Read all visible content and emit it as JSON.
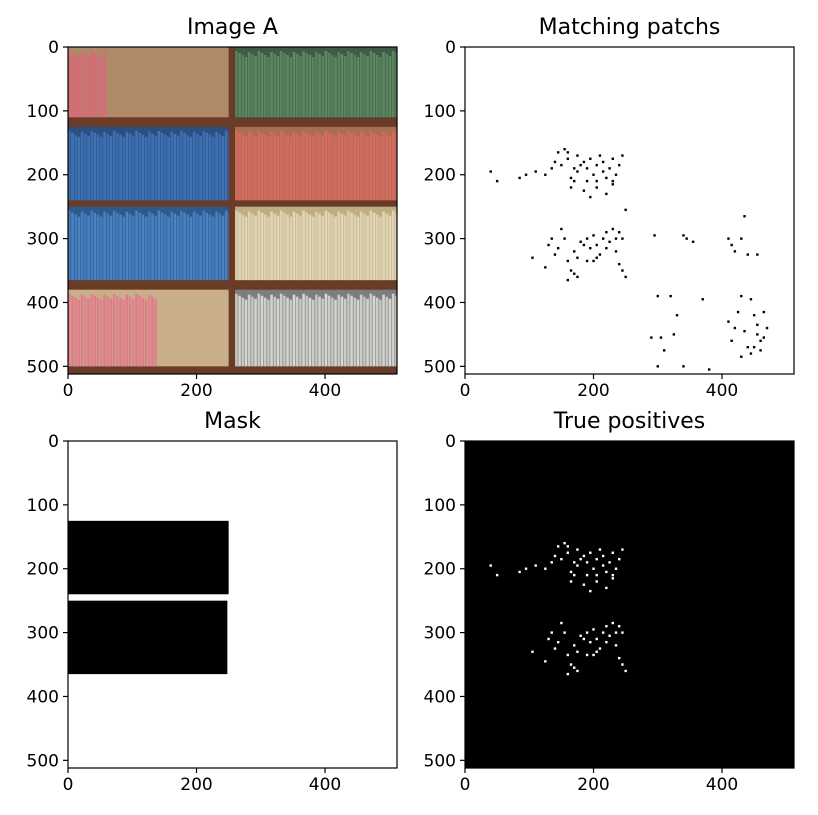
{
  "chart_data": [
    {
      "type": "image",
      "title": "Image A",
      "xlim": [
        0,
        512
      ],
      "ylim": [
        512,
        0
      ],
      "xticks": [
        0,
        200,
        400
      ],
      "yticks": [
        0,
        100,
        200,
        300,
        400,
        500
      ],
      "image_description": "bookshelf photo",
      "bookcase_color": "#6a3b26",
      "regions": [
        {
          "x0": 0,
          "x1": 250,
          "y0": 0,
          "y1": 110,
          "books": [
            0,
            60
          ],
          "book_color": "#d86878",
          "back_color": "#b08a68"
        },
        {
          "x0": 260,
          "x1": 512,
          "y0": 0,
          "y1": 110,
          "books": [
            0,
            250
          ],
          "book_color": "#5e8a62",
          "back_color": "#3f5a48"
        },
        {
          "x0": 0,
          "x1": 250,
          "y0": 125,
          "y1": 240,
          "books": [
            0,
            250
          ],
          "book_color": "#3f74b8",
          "back_color": "#2d4f80"
        },
        {
          "x0": 260,
          "x1": 512,
          "y0": 125,
          "y1": 240,
          "books": [
            0,
            250
          ],
          "book_color": "#d96a62",
          "back_color": "#a86e52"
        },
        {
          "x0": 0,
          "x1": 250,
          "y0": 250,
          "y1": 365,
          "books": [
            0,
            250
          ],
          "book_color": "#4a84c6",
          "back_color": "#2d5a8a"
        },
        {
          "x0": 260,
          "x1": 512,
          "y0": 250,
          "y1": 365,
          "books": [
            0,
            250
          ],
          "book_color": "#e2d8b8",
          "back_color": "#bfae84"
        },
        {
          "x0": 0,
          "x1": 250,
          "y0": 380,
          "y1": 500,
          "books": [
            0,
            140
          ],
          "book_color": "#e17a8c",
          "back_color": "#c9ae8a"
        },
        {
          "x0": 260,
          "x1": 512,
          "y0": 380,
          "y1": 500,
          "books": [
            0,
            250
          ],
          "book_color": "#d8d8d0",
          "back_color": "#7d7d80"
        }
      ]
    },
    {
      "type": "scatter",
      "title": "Matching patchs",
      "xlim": [
        0,
        512
      ],
      "ylim": [
        512,
        0
      ],
      "xticks": [
        0,
        200,
        400
      ],
      "yticks": [
        0,
        100,
        200,
        300,
        400,
        500
      ],
      "background": "#ffffff",
      "point_color": "#000000",
      "points": [
        [
          40,
          195
        ],
        [
          50,
          210
        ],
        [
          85,
          205
        ],
        [
          95,
          200
        ],
        [
          110,
          195
        ],
        [
          125,
          200
        ],
        [
          135,
          190
        ],
        [
          140,
          180
        ],
        [
          145,
          165
        ],
        [
          150,
          185
        ],
        [
          155,
          160
        ],
        [
          160,
          175
        ],
        [
          165,
          205
        ],
        [
          170,
          210
        ],
        [
          170,
          190
        ],
        [
          175,
          195
        ],
        [
          180,
          185
        ],
        [
          185,
          180
        ],
        [
          190,
          190
        ],
        [
          190,
          210
        ],
        [
          195,
          175
        ],
        [
          200,
          200
        ],
        [
          205,
          185
        ],
        [
          205,
          210
        ],
        [
          210,
          170
        ],
        [
          215,
          180
        ],
        [
          215,
          195
        ],
        [
          220,
          205
        ],
        [
          225,
          190
        ],
        [
          230,
          175
        ],
        [
          230,
          210
        ],
        [
          235,
          200
        ],
        [
          240,
          185
        ],
        [
          245,
          170
        ],
        [
          185,
          225
        ],
        [
          195,
          235
        ],
        [
          205,
          220
        ],
        [
          220,
          230
        ],
        [
          230,
          215
        ],
        [
          250,
          255
        ],
        [
          160,
          165
        ],
        [
          175,
          170
        ],
        [
          165,
          220
        ],
        [
          125,
          345
        ],
        [
          130,
          310
        ],
        [
          135,
          300
        ],
        [
          140,
          325
        ],
        [
          145,
          315
        ],
        [
          150,
          285
        ],
        [
          155,
          300
        ],
        [
          160,
          335
        ],
        [
          165,
          350
        ],
        [
          170,
          320
        ],
        [
          175,
          330
        ],
        [
          175,
          360
        ],
        [
          180,
          305
        ],
        [
          185,
          310
        ],
        [
          190,
          300
        ],
        [
          190,
          335
        ],
        [
          195,
          315
        ],
        [
          200,
          295
        ],
        [
          205,
          310
        ],
        [
          205,
          330
        ],
        [
          210,
          325
        ],
        [
          215,
          300
        ],
        [
          220,
          315
        ],
        [
          220,
          290
        ],
        [
          225,
          305
        ],
        [
          230,
          285
        ],
        [
          235,
          300
        ],
        [
          235,
          320
        ],
        [
          240,
          290
        ],
        [
          240,
          340
        ],
        [
          245,
          300
        ],
        [
          245,
          350
        ],
        [
          160,
          365
        ],
        [
          170,
          355
        ],
        [
          200,
          335
        ],
        [
          250,
          360
        ],
        [
          105,
          330
        ],
        [
          295,
          295
        ],
        [
          340,
          295
        ],
        [
          345,
          300
        ],
        [
          355,
          305
        ],
        [
          410,
          300
        ],
        [
          415,
          310
        ],
        [
          420,
          320
        ],
        [
          430,
          300
        ],
        [
          440,
          325
        ],
        [
          435,
          265
        ],
        [
          455,
          325
        ],
        [
          430,
          390
        ],
        [
          445,
          395
        ],
        [
          410,
          430
        ],
        [
          420,
          440
        ],
        [
          425,
          415
        ],
        [
          435,
          445
        ],
        [
          450,
          420
        ],
        [
          455,
          450
        ],
        [
          460,
          460
        ],
        [
          465,
          455
        ],
        [
          470,
          440
        ],
        [
          450,
          470
        ],
        [
          460,
          475
        ],
        [
          455,
          435
        ],
        [
          465,
          415
        ],
        [
          430,
          485
        ],
        [
          415,
          460
        ],
        [
          440,
          470
        ],
        [
          445,
          480
        ],
        [
          300,
          390
        ],
        [
          320,
          390
        ],
        [
          370,
          395
        ],
        [
          330,
          420
        ],
        [
          325,
          450
        ],
        [
          305,
          455
        ],
        [
          290,
          455
        ],
        [
          310,
          475
        ],
        [
          300,
          500
        ],
        [
          340,
          500
        ],
        [
          380,
          505
        ]
      ]
    },
    {
      "type": "heatmap",
      "title": "Mask",
      "xlim": [
        0,
        512
      ],
      "ylim": [
        512,
        0
      ],
      "xticks": [
        0,
        200,
        400
      ],
      "yticks": [
        0,
        100,
        200,
        300,
        400,
        500
      ],
      "background": "#ffffff",
      "fill_color": "#000000",
      "rectangles": [
        {
          "x0": 0,
          "x1": 250,
          "y0": 125,
          "y1": 240
        },
        {
          "x0": 0,
          "x1": 248,
          "y0": 250,
          "y1": 365
        }
      ]
    },
    {
      "type": "scatter",
      "title": "True positives",
      "xlim": [
        0,
        512
      ],
      "ylim": [
        512,
        0
      ],
      "xticks": [
        0,
        200,
        400
      ],
      "yticks": [
        0,
        100,
        200,
        300,
        400,
        500
      ],
      "background": "#000000",
      "point_color": "#ffffff",
      "points": [
        [
          40,
          195
        ],
        [
          50,
          210
        ],
        [
          85,
          205
        ],
        [
          95,
          200
        ],
        [
          110,
          195
        ],
        [
          125,
          200
        ],
        [
          135,
          190
        ],
        [
          140,
          180
        ],
        [
          145,
          165
        ],
        [
          150,
          185
        ],
        [
          155,
          160
        ],
        [
          160,
          175
        ],
        [
          165,
          205
        ],
        [
          170,
          210
        ],
        [
          170,
          190
        ],
        [
          175,
          195
        ],
        [
          180,
          185
        ],
        [
          185,
          180
        ],
        [
          190,
          190
        ],
        [
          190,
          210
        ],
        [
          195,
          175
        ],
        [
          200,
          200
        ],
        [
          205,
          185
        ],
        [
          205,
          210
        ],
        [
          210,
          170
        ],
        [
          215,
          180
        ],
        [
          215,
          195
        ],
        [
          220,
          205
        ],
        [
          225,
          190
        ],
        [
          230,
          175
        ],
        [
          230,
          210
        ],
        [
          235,
          200
        ],
        [
          240,
          185
        ],
        [
          245,
          170
        ],
        [
          185,
          225
        ],
        [
          195,
          235
        ],
        [
          205,
          220
        ],
        [
          220,
          230
        ],
        [
          230,
          215
        ],
        [
          160,
          165
        ],
        [
          175,
          170
        ],
        [
          165,
          220
        ],
        [
          125,
          345
        ],
        [
          130,
          310
        ],
        [
          135,
          300
        ],
        [
          140,
          325
        ],
        [
          145,
          315
        ],
        [
          150,
          285
        ],
        [
          155,
          300
        ],
        [
          160,
          335
        ],
        [
          165,
          350
        ],
        [
          170,
          320
        ],
        [
          175,
          330
        ],
        [
          175,
          360
        ],
        [
          180,
          305
        ],
        [
          185,
          310
        ],
        [
          190,
          300
        ],
        [
          190,
          335
        ],
        [
          195,
          315
        ],
        [
          200,
          295
        ],
        [
          205,
          310
        ],
        [
          205,
          330
        ],
        [
          210,
          325
        ],
        [
          215,
          300
        ],
        [
          220,
          315
        ],
        [
          220,
          290
        ],
        [
          225,
          305
        ],
        [
          230,
          285
        ],
        [
          235,
          300
        ],
        [
          235,
          320
        ],
        [
          240,
          290
        ],
        [
          240,
          340
        ],
        [
          245,
          300
        ],
        [
          245,
          350
        ],
        [
          160,
          365
        ],
        [
          170,
          355
        ],
        [
          200,
          335
        ],
        [
          250,
          360
        ],
        [
          105,
          330
        ]
      ]
    }
  ]
}
